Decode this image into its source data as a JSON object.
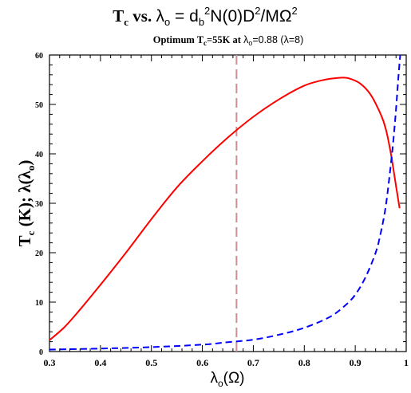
{
  "chart_data": {
    "type": "line",
    "title_parts": {
      "t": "T",
      "c_sub": "c",
      "vs": " vs. ",
      "lambda": "λ",
      "o_sub": "o",
      "eq": " = d",
      "b_sub": "b",
      "sup2": "2",
      "n0": "N(0)D",
      "sup2b": "2",
      "mo": "/MΩ",
      "sup2c": "2"
    },
    "subtitle_parts": {
      "opt": "Optimum T",
      "c_sub": "c",
      "k55": "=55K at ",
      "lambda": "λ",
      "o_sub": "o",
      "val": "=0.88 (λ=8)"
    },
    "xlabel_parts": {
      "lambda": "λ",
      "o_sub": "o",
      "omega": "(Ω)"
    },
    "ylabel_parts": {
      "t": "T",
      "c_sub": "c",
      "rest": " (K); λ(λ",
      "o_sub": "o",
      "close": ")"
    },
    "xlim": [
      0.3,
      1.0
    ],
    "ylim": [
      0,
      60
    ],
    "x_ticks": [
      "0.3",
      "0.4",
      "0.5",
      "0.6",
      "0.7",
      "0.8",
      "0.9",
      "1"
    ],
    "y_ticks": [
      "0",
      "10",
      "20",
      "30",
      "40",
      "50",
      "60"
    ],
    "x_tick_values": [
      0.3,
      0.4,
      0.5,
      0.6,
      0.7,
      0.8,
      0.9,
      1.0
    ],
    "y_tick_values": [
      0,
      10,
      20,
      30,
      40,
      50,
      60
    ],
    "vertical_line_x": 0.667,
    "series": [
      {
        "style": "solid",
        "color": "#ff0000",
        "x": [
          0.3,
          0.33,
          0.36,
          0.4,
          0.45,
          0.5,
          0.55,
          0.6,
          0.65,
          0.7,
          0.75,
          0.8,
          0.84,
          0.87,
          0.88,
          0.89,
          0.91,
          0.93,
          0.95,
          0.96,
          0.97,
          0.98,
          0.987
        ],
        "y": [
          2.3,
          5.0,
          8.5,
          13.5,
          20.0,
          26.8,
          33.2,
          38.5,
          43.3,
          47.5,
          51.0,
          53.8,
          55.0,
          55.4,
          55.4,
          55.2,
          54.2,
          52.0,
          48.0,
          45.0,
          40.0,
          33.5,
          29.0
        ]
      },
      {
        "style": "dashed",
        "color": "#0000ff",
        "x": [
          0.3,
          0.4,
          0.5,
          0.6,
          0.65,
          0.7,
          0.75,
          0.8,
          0.85,
          0.88,
          0.9,
          0.92,
          0.94,
          0.95,
          0.96,
          0.97,
          0.975,
          0.98,
          0.985,
          0.99
        ],
        "y": [
          0.4,
          0.6,
          0.9,
          1.4,
          1.9,
          2.4,
          3.4,
          4.8,
          7.0,
          9.3,
          11.5,
          15.0,
          20.0,
          24.0,
          29.5,
          38.0,
          43.0,
          49.0,
          56.0,
          62.0
        ]
      }
    ]
  },
  "colors": {
    "vertical_line": "#c89090",
    "axis": "#000000"
  }
}
